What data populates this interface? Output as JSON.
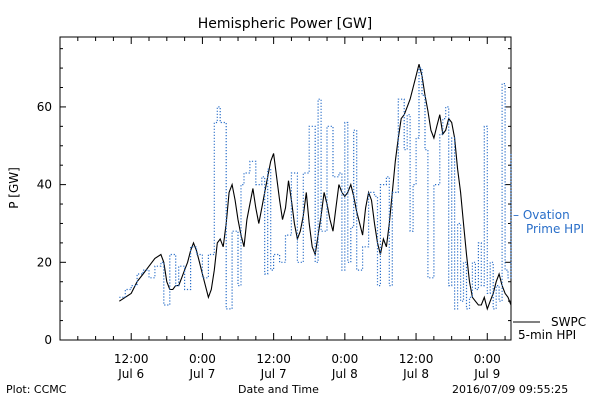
{
  "chart_data": {
    "type": "line",
    "title": "Hemispheric Power [GW]",
    "ylabel": "P [GW]",
    "xlabel": "Date and Time",
    "ylim": [
      0,
      78
    ],
    "yticks": [
      0,
      20,
      40,
      60
    ],
    "xlim": [
      0,
      76
    ],
    "x_unit": "hours since 2016-07-06 00:00",
    "x_ticks": [
      {
        "x": 12,
        "line1": "12:00",
        "line2": "Jul 6"
      },
      {
        "x": 24,
        "line1": "0:00",
        "line2": "Jul 7"
      },
      {
        "x": 36,
        "line1": "12:00",
        "line2": "Jul 7"
      },
      {
        "x": 48,
        "line1": "0:00",
        "line2": "Jul 8"
      },
      {
        "x": 60,
        "line1": "12:00",
        "line2": "Jul 8"
      },
      {
        "x": 72,
        "line1": "0:00",
        "line2": "Jul 9"
      }
    ],
    "series": [
      {
        "name": "SWPC 5-min HPI",
        "label_lines": [
          "SWPC",
          "5-min HPI"
        ],
        "color": "#000000",
        "style": "solid",
        "points": [
          [
            10.0,
            10
          ],
          [
            11.0,
            11
          ],
          [
            12.0,
            12
          ],
          [
            13.0,
            15
          ],
          [
            14.0,
            17
          ],
          [
            15.0,
            19
          ],
          [
            16.0,
            21
          ],
          [
            17.0,
            22
          ],
          [
            17.5,
            20
          ],
          [
            18.0,
            15
          ],
          [
            18.5,
            13
          ],
          [
            19.0,
            13
          ],
          [
            19.5,
            14
          ],
          [
            20.0,
            14
          ],
          [
            20.5,
            16
          ],
          [
            21.0,
            18
          ],
          [
            21.5,
            20
          ],
          [
            22.0,
            23
          ],
          [
            22.5,
            25
          ],
          [
            23.0,
            23
          ],
          [
            23.5,
            20
          ],
          [
            24.0,
            17
          ],
          [
            24.5,
            14
          ],
          [
            25.0,
            11
          ],
          [
            25.5,
            13
          ],
          [
            26.0,
            18
          ],
          [
            26.5,
            25
          ],
          [
            27.0,
            26
          ],
          [
            27.5,
            24
          ],
          [
            28.0,
            30
          ],
          [
            28.5,
            38
          ],
          [
            29.0,
            40
          ],
          [
            29.5,
            36
          ],
          [
            30.0,
            31
          ],
          [
            30.5,
            27
          ],
          [
            31.0,
            24
          ],
          [
            31.5,
            31
          ],
          [
            32.0,
            35
          ],
          [
            32.5,
            39
          ],
          [
            33.0,
            34
          ],
          [
            33.5,
            30
          ],
          [
            34.0,
            34
          ],
          [
            34.5,
            38
          ],
          [
            35.0,
            42
          ],
          [
            35.5,
            46
          ],
          [
            36.0,
            48
          ],
          [
            36.5,
            42
          ],
          [
            37.0,
            36
          ],
          [
            37.5,
            31
          ],
          [
            38.0,
            34
          ],
          [
            38.5,
            41
          ],
          [
            39.0,
            36
          ],
          [
            39.5,
            30
          ],
          [
            40.0,
            26
          ],
          [
            40.5,
            28
          ],
          [
            41.0,
            32
          ],
          [
            41.5,
            38
          ],
          [
            42.0,
            30
          ],
          [
            42.5,
            24
          ],
          [
            43.0,
            22
          ],
          [
            43.5,
            27
          ],
          [
            44.0,
            32
          ],
          [
            44.5,
            38
          ],
          [
            45.0,
            35
          ],
          [
            45.5,
            31
          ],
          [
            46.0,
            28
          ],
          [
            46.5,
            34
          ],
          [
            47.0,
            40
          ],
          [
            47.5,
            38
          ],
          [
            48.0,
            37
          ],
          [
            48.5,
            38
          ],
          [
            49.0,
            40
          ],
          [
            49.5,
            37
          ],
          [
            50.0,
            33
          ],
          [
            50.5,
            30
          ],
          [
            51.0,
            27
          ],
          [
            51.5,
            34
          ],
          [
            52.0,
            38
          ],
          [
            52.5,
            36
          ],
          [
            53.0,
            30
          ],
          [
            53.5,
            25
          ],
          [
            54.0,
            22
          ],
          [
            54.5,
            26
          ],
          [
            55.0,
            24
          ],
          [
            55.5,
            30
          ],
          [
            56.0,
            38
          ],
          [
            56.5,
            46
          ],
          [
            57.0,
            52
          ],
          [
            57.5,
            57
          ],
          [
            58.0,
            58
          ],
          [
            58.5,
            60
          ],
          [
            59.0,
            62
          ],
          [
            59.5,
            65
          ],
          [
            60.0,
            68
          ],
          [
            60.5,
            71
          ],
          [
            61.0,
            68
          ],
          [
            61.5,
            63
          ],
          [
            62.0,
            59
          ],
          [
            62.5,
            54
          ],
          [
            63.0,
            52
          ],
          [
            63.5,
            55
          ],
          [
            64.0,
            58
          ],
          [
            64.5,
            53
          ],
          [
            65.0,
            54
          ],
          [
            65.5,
            57
          ],
          [
            66.0,
            56
          ],
          [
            66.5,
            52
          ],
          [
            67.0,
            44
          ],
          [
            67.5,
            38
          ],
          [
            68.0,
            30
          ],
          [
            68.5,
            22
          ],
          [
            69.0,
            15
          ],
          [
            69.5,
            11
          ],
          [
            70.0,
            10
          ],
          [
            70.5,
            9
          ],
          [
            71.0,
            9
          ],
          [
            71.5,
            11
          ],
          [
            72.0,
            8
          ],
          [
            72.5,
            10
          ],
          [
            73.0,
            12
          ],
          [
            73.5,
            15
          ],
          [
            74.0,
            17
          ],
          [
            74.5,
            14
          ],
          [
            75.0,
            12
          ],
          [
            75.5,
            11
          ],
          [
            76.0,
            9
          ]
        ]
      },
      {
        "name": "Ovation Prime HPI",
        "label_lines": [
          "– Ovation",
          "Prime HPI"
        ],
        "color": "#2a6fc9",
        "style": "dotted-step",
        "points": [
          [
            10.0,
            11
          ],
          [
            11.0,
            13
          ],
          [
            12.0,
            14
          ],
          [
            13.0,
            17
          ],
          [
            14.0,
            18
          ],
          [
            15.0,
            16
          ],
          [
            16.0,
            19
          ],
          [
            17.0,
            20
          ],
          [
            17.5,
            9
          ],
          [
            18.5,
            22
          ],
          [
            19.5,
            14
          ],
          [
            20.0,
            19
          ],
          [
            21.0,
            13
          ],
          [
            22.0,
            24
          ],
          [
            23.0,
            22
          ],
          [
            24.0,
            16
          ],
          [
            25.0,
            22
          ],
          [
            26.0,
            56
          ],
          [
            26.5,
            60
          ],
          [
            27.0,
            56
          ],
          [
            28.0,
            8
          ],
          [
            29.0,
            28
          ],
          [
            30.0,
            14
          ],
          [
            30.5,
            40
          ],
          [
            31.0,
            43
          ],
          [
            32.0,
            46
          ],
          [
            33.0,
            40
          ],
          [
            34.0,
            42
          ],
          [
            34.5,
            17
          ],
          [
            35.0,
            44
          ],
          [
            35.5,
            18
          ],
          [
            36.0,
            22
          ],
          [
            37.0,
            20
          ],
          [
            38.0,
            27
          ],
          [
            39.0,
            43
          ],
          [
            40.0,
            20
          ],
          [
            41.0,
            43
          ],
          [
            42.0,
            55
          ],
          [
            43.0,
            20
          ],
          [
            43.5,
            62
          ],
          [
            44.0,
            28
          ],
          [
            45.0,
            55
          ],
          [
            46.0,
            42
          ],
          [
            47.0,
            43
          ],
          [
            47.5,
            18
          ],
          [
            48.0,
            56
          ],
          [
            48.5,
            20
          ],
          [
            49.0,
            29
          ],
          [
            49.5,
            54
          ],
          [
            50.0,
            18
          ],
          [
            51.0,
            24
          ],
          [
            52.0,
            38
          ],
          [
            53.0,
            37
          ],
          [
            53.5,
            14
          ],
          [
            54.0,
            40
          ],
          [
            55.0,
            42
          ],
          [
            55.5,
            14
          ],
          [
            56.0,
            38
          ],
          [
            57.0,
            62
          ],
          [
            58.0,
            49
          ],
          [
            58.5,
            58
          ],
          [
            59.0,
            28
          ],
          [
            59.5,
            40
          ],
          [
            60.0,
            52
          ],
          [
            60.5,
            70
          ],
          [
            61.0,
            63
          ],
          [
            61.5,
            49
          ],
          [
            62.0,
            16
          ],
          [
            63.0,
            40
          ],
          [
            64.0,
            53
          ],
          [
            64.5,
            57
          ],
          [
            65.0,
            60
          ],
          [
            65.5,
            14
          ],
          [
            66.0,
            52
          ],
          [
            66.5,
            8
          ],
          [
            67.0,
            30
          ],
          [
            67.5,
            10
          ],
          [
            68.0,
            20
          ],
          [
            68.5,
            8
          ],
          [
            69.0,
            11
          ],
          [
            69.5,
            20
          ],
          [
            70.0,
            13
          ],
          [
            70.5,
            25
          ],
          [
            71.0,
            14
          ],
          [
            71.5,
            55
          ],
          [
            72.0,
            12
          ],
          [
            72.5,
            20
          ],
          [
            73.0,
            8
          ],
          [
            73.5,
            14
          ],
          [
            74.0,
            10
          ],
          [
            74.5,
            66
          ],
          [
            75.0,
            18
          ],
          [
            75.5,
            16
          ],
          [
            76.0,
            48
          ]
        ]
      }
    ]
  },
  "footer": {
    "left": "Plot: CCMC",
    "center": "Date and Time",
    "right": "2016/07/09 09:55:25"
  }
}
